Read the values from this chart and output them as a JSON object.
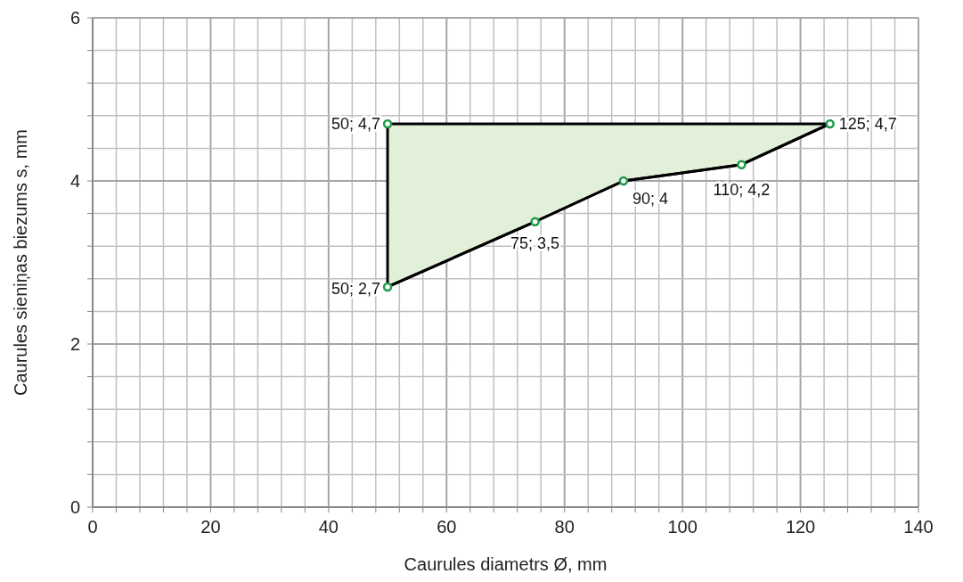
{
  "chart_data": {
    "type": "line",
    "xlabel": "Caurules diametrs Ø, mm",
    "ylabel": "Caurules sieniņas biezums s, mm",
    "xlim": [
      0,
      140
    ],
    "ylim": [
      0,
      6
    ],
    "xticks": [
      0,
      {
        "value": 4,
        "label": null
      },
      {
        "value": 8,
        "label": null
      },
      {
        "value": 12,
        "label": null
      },
      {
        "value": 16,
        "label": null
      },
      20,
      {
        "value": 24,
        "label": null
      },
      {
        "value": 28,
        "label": null
      },
      {
        "value": 32,
        "label": null
      },
      {
        "value": 36,
        "label": null
      },
      40,
      {
        "value": 44,
        "label": null
      },
      {
        "value": 48,
        "label": null
      },
      {
        "value": 52,
        "label": null
      },
      {
        "value": 56,
        "label": null
      },
      60,
      {
        "value": 64,
        "label": null
      },
      {
        "value": 68,
        "label": null
      },
      {
        "value": 72,
        "label": null
      },
      {
        "value": 76,
        "label": null
      },
      80,
      {
        "value": 84,
        "label": null
      },
      {
        "value": 88,
        "label": null
      },
      {
        "value": 92,
        "label": null
      },
      {
        "value": 96,
        "label": null
      },
      100,
      {
        "value": 104,
        "label": null
      },
      {
        "value": 108,
        "label": null
      },
      {
        "value": 112,
        "label": null
      },
      {
        "value": 116,
        "label": null
      },
      120,
      {
        "value": 124,
        "label": null
      },
      {
        "value": 128,
        "label": null
      },
      {
        "value": 132,
        "label": null
      },
      {
        "value": 136,
        "label": null
      },
      140
    ],
    "yticks": [
      0,
      {
        "value": 0.4,
        "label": null
      },
      {
        "value": 0.8,
        "label": null
      },
      {
        "value": 1.2,
        "label": null
      },
      {
        "value": 1.6,
        "label": null
      },
      2,
      {
        "value": 2.4,
        "label": null
      },
      {
        "value": 2.8,
        "label": null
      },
      {
        "value": 3.2,
        "label": null
      },
      {
        "value": 3.6,
        "label": null
      },
      4,
      {
        "value": 4.4,
        "label": null
      },
      {
        "value": 4.8,
        "label": null
      },
      {
        "value": 5.2,
        "label": null
      },
      {
        "value": 5.6,
        "label": null
      },
      6
    ],
    "grid": true,
    "series": [
      {
        "color": "#000000",
        "x": [
          50,
          75,
          90,
          110,
          125
        ],
        "values": [
          2.7,
          3.5,
          4,
          4.2,
          4.7
        ],
        "lower": [
          2.7,
          3.5,
          4,
          4.2,
          4.7
        ],
        "upper": [
          4.7,
          4.7,
          4.7,
          4.7,
          4.7
        ],
        "marker": "none"
      },
      {
        "type": "scatter",
        "color": "#1e9a48",
        "marker": "circle",
        "x": [
          50,
          50,
          75,
          90,
          110,
          125
        ],
        "values": [
          4.7,
          2.7,
          3.5,
          4,
          4.2,
          4.7
        ],
        "value_labels": [
          "50; 4,7",
          "50; 2,7",
          "75; 3,5",
          "90; 4",
          "110; 4,2",
          "125; 4,7"
        ]
      }
    ]
  }
}
